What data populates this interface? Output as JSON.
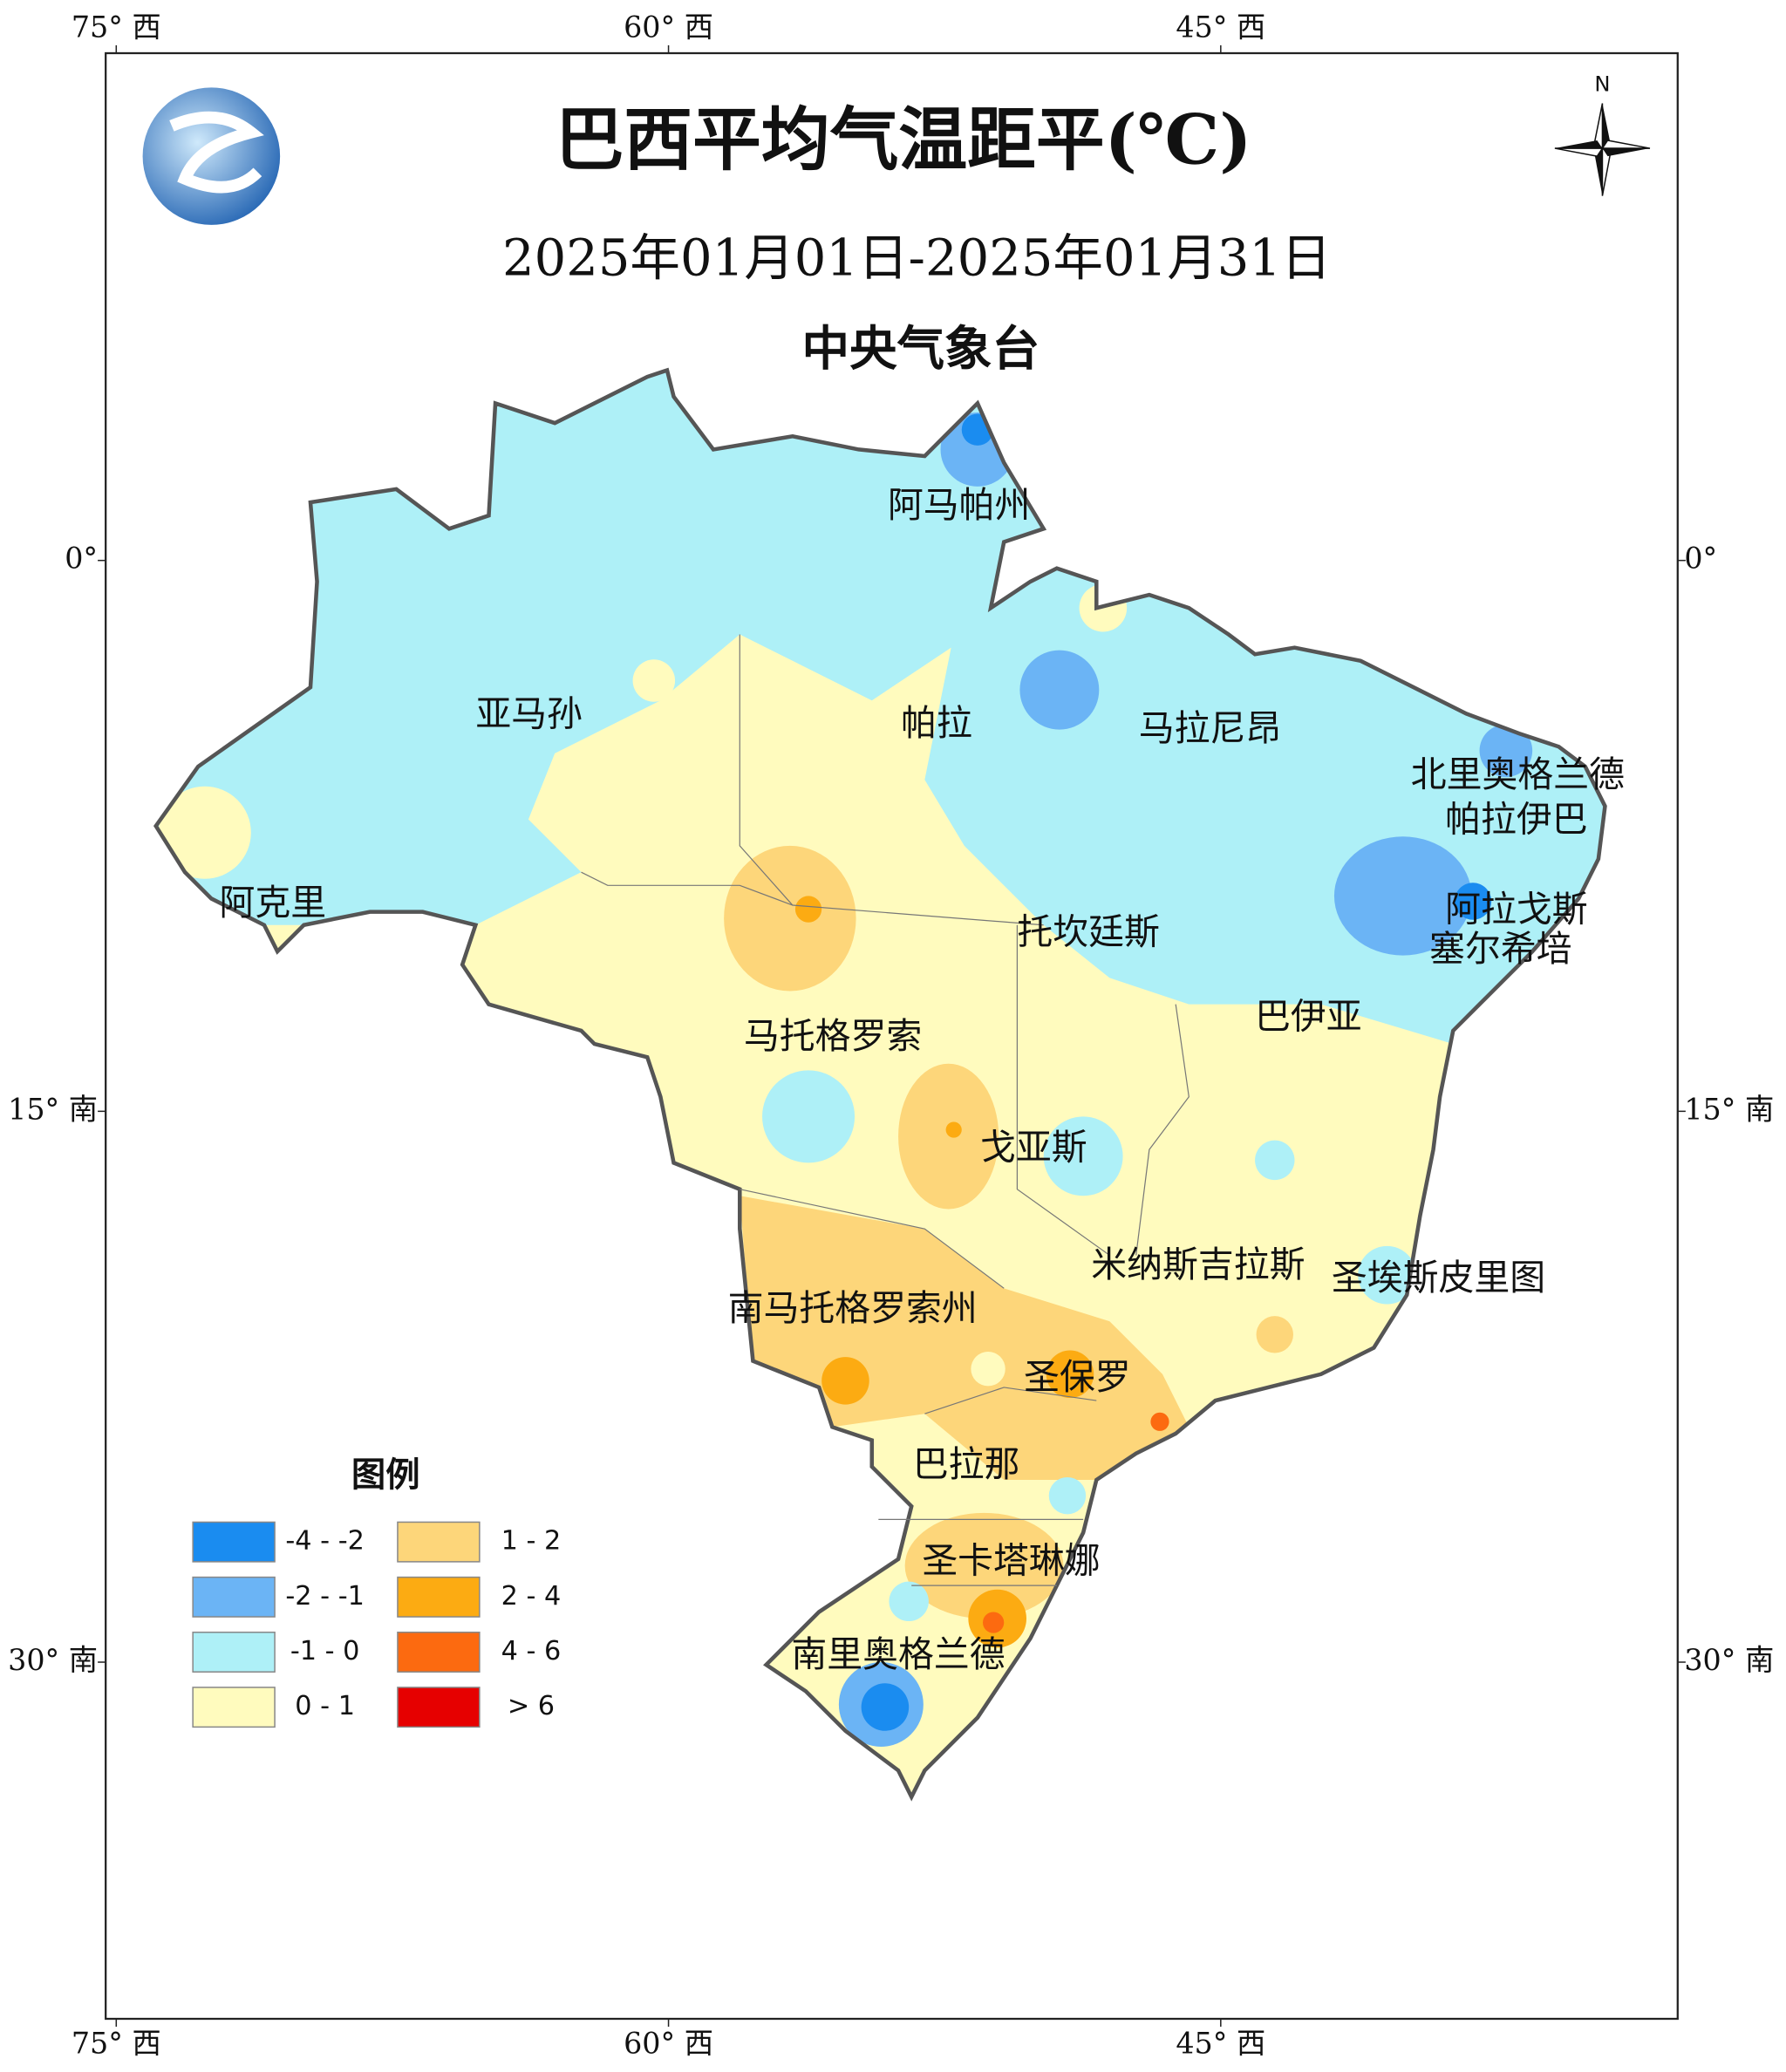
{
  "header": {
    "title": "巴西平均气温距平(℃)",
    "subtitle": "2025年01月01日-2025年01月31日",
    "issuer": "中央气象台"
  },
  "compass_label": "N",
  "lon_ticks": [
    {
      "value": -75,
      "label": "75° 西"
    },
    {
      "value": -60,
      "label": "60° 西"
    },
    {
      "value": -45,
      "label": "45° 西"
    }
  ],
  "lat_ticks": [
    {
      "value": 0,
      "label": "0°"
    },
    {
      "value": -15,
      "label": "15° 南"
    },
    {
      "value": -30,
      "label": "30° 南"
    }
  ],
  "regions": [
    "阿马帕州",
    "亚马孙",
    "帕拉",
    "马拉尼昂",
    "北里奥格兰德",
    "帕拉伊巴",
    "阿克里",
    "阿拉戈斯",
    "托坎廷斯",
    "塞尔希培",
    "马托格罗索",
    "巴伊亚",
    "戈亚斯",
    "米纳斯吉拉斯",
    "圣埃斯皮里图",
    "南马托格罗索州",
    "圣保罗",
    "巴拉那",
    "圣卡塔琳娜",
    "南里奥格兰德"
  ],
  "legend": {
    "title": "图例",
    "entries": [
      {
        "label": "-4 - -2",
        "color": "#1a8cf0"
      },
      {
        "label": "-2 - -1",
        "color": "#6bb4f5"
      },
      {
        "label": "-1 - 0",
        "color": "#aef0f7"
      },
      {
        "label": "0 - 1",
        "color": "#fffbbe"
      },
      {
        "label": "1 - 2",
        "color": "#fdd67a"
      },
      {
        "label": "2 - 4",
        "color": "#fcab12"
      },
      {
        "label": "4 - 6",
        "color": "#fc6a10"
      },
      {
        "label": "> 6",
        "color": "#e60000"
      }
    ]
  }
}
